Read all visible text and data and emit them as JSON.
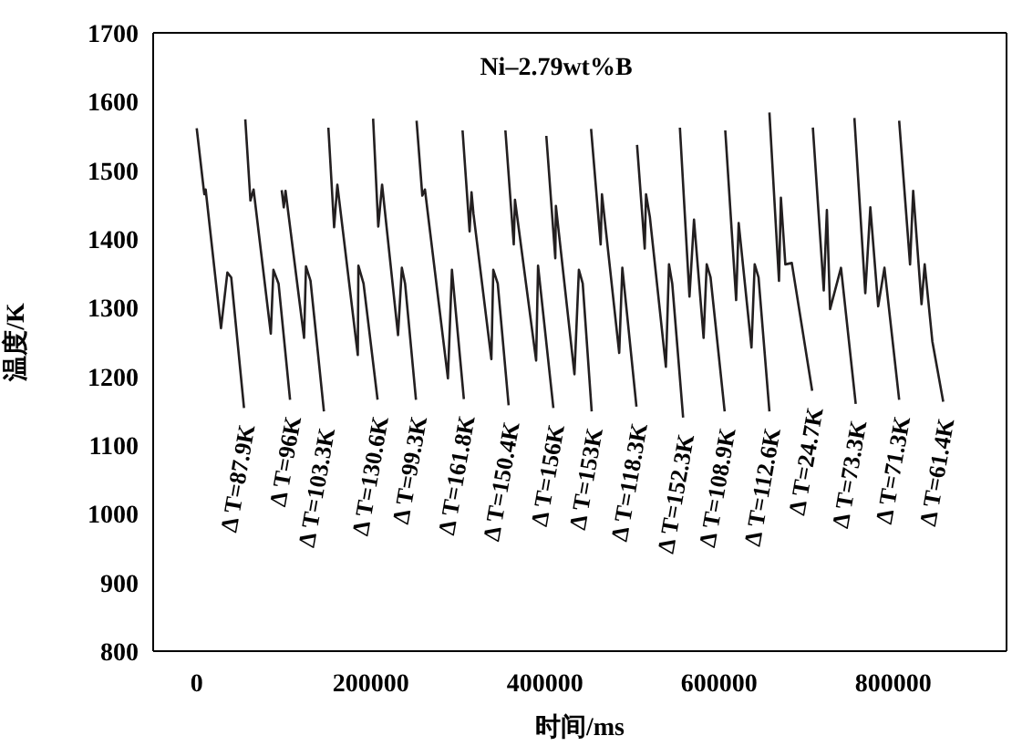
{
  "chart_data": {
    "type": "line",
    "title": "Ni–2.79wt%B",
    "xlabel": "时间/ms",
    "ylabel": "温度/K",
    "xlim": [
      -50000,
      930000
    ],
    "xticks": [
      0,
      200000,
      400000,
      600000,
      800000
    ],
    "ylim": [
      800,
      1700
    ],
    "yticks": [
      800,
      900,
      1000,
      1100,
      1200,
      1300,
      1400,
      1500,
      1600,
      1700
    ],
    "grid": false,
    "marker": "none",
    "line_style": "solid",
    "series": [
      {
        "color": "#231f20",
        "x": [
          0,
          8074,
          8808,
          10276,
          27892,
          35232,
          39636,
          54316
        ],
        "values": [
          1561,
          1472,
          1465,
          1472,
          1270,
          1351,
          1344,
          1154
        ]
      },
      {
        "color": "#231f20",
        "x": [
          55800,
          61700,
          65300,
          85100,
          88100,
          94000,
          107200
        ],
        "values": [
          1574,
          1456,
          1472,
          1262,
          1355,
          1335,
          1166
        ]
      },
      {
        "color": "#231f20",
        "x": [
          97600,
          100000,
          102000,
          123300,
          125500,
          130700,
          146100
        ],
        "values": [
          1471,
          1446,
          1470,
          1256,
          1360,
          1339,
          1149
        ]
      },
      {
        "color": "#231f20",
        "x": [
          151200,
          157800,
          161500,
          163700,
          185000,
          185700,
          191600,
          207700
        ],
        "values": [
          1562,
          1417,
          1479,
          1456,
          1231,
          1361,
          1335,
          1166
        ]
      },
      {
        "color": "#231f20",
        "x": [
          202600,
          208500,
          212900,
          231200,
          235600,
          239300,
          251800
        ],
        "values": [
          1575,
          1418,
          1479,
          1260,
          1358,
          1335,
          1166
        ]
      },
      {
        "color": "#231f20",
        "x": [
          252500,
          259100,
          262100,
          288500,
          293100,
          306800
        ],
        "values": [
          1572,
          1463,
          1472,
          1197,
          1355,
          1167
        ]
      },
      {
        "color": "#231f20",
        "x": [
          305300,
          313400,
          315600,
          317800,
          338400,
          340600,
          345700,
          358200
        ],
        "values": [
          1558,
          1411,
          1468,
          1437,
          1225,
          1355,
          1335,
          1158
        ]
      },
      {
        "color": "#231f20",
        "x": [
          354500,
          364100,
          365500,
          389800,
          392000,
          409600
        ],
        "values": [
          1558,
          1392,
          1457,
          1223,
          1361,
          1154
        ]
      },
      {
        "color": "#231f20",
        "x": [
          401500,
          411800,
          412500,
          433800,
          438900,
          443300,
          453600
        ],
        "values": [
          1550,
          1372,
          1448,
          1203,
          1355,
          1335,
          1149
        ]
      },
      {
        "color": "#231f20",
        "x": [
          452900,
          463900,
          465400,
          485200,
          488800,
          505000
        ],
        "values": [
          1560,
          1392,
          1465,
          1234,
          1358,
          1156
        ]
      },
      {
        "color": "#231f20",
        "x": [
          505700,
          514500,
          516000,
          520400,
          538800,
          542400,
          546100,
          558600
        ],
        "values": [
          1537,
          1386,
          1465,
          1432,
          1214,
          1363,
          1335,
          1140
        ]
      },
      {
        "color": "#231f20",
        "x": [
          554900,
          565900,
          571100,
          582100,
          585700,
          590100,
          606300
        ],
        "values": [
          1562,
          1316,
          1428,
          1256,
          1363,
          1344,
          1149
        ]
      },
      {
        "color": "#231f20",
        "x": [
          607000,
          619500,
          622400,
          637100,
          640800,
          645200,
          657700
        ],
        "values": [
          1558,
          1311,
          1423,
          1242,
          1363,
          1344,
          1149
        ]
      },
      {
        "color": "#231f20",
        "x": [
          657700,
          668700,
          670900,
          676000,
          683400,
          706800
        ],
        "values": [
          1584,
          1339,
          1460,
          1363,
          1365,
          1179
        ]
      },
      {
        "color": "#231f20",
        "x": [
          707600,
          720100,
          723700,
          727400,
          739900,
          756800
        ],
        "values": [
          1562,
          1325,
          1442,
          1298,
          1358,
          1160
        ]
      },
      {
        "color": "#231f20",
        "x": [
          755300,
          767800,
          773600,
          782600,
          789800,
          806700
        ],
        "values": [
          1576,
          1321,
          1446,
          1302,
          1358,
          1166
        ]
      },
      {
        "color": "#231f20",
        "x": [
          806700,
          819200,
          822800,
          832400,
          836000,
          844800,
          857300
        ],
        "values": [
          1572,
          1363,
          1470,
          1305,
          1363,
          1251,
          1163
        ]
      }
    ],
    "annotations": [
      {
        "text": "Δ T=87.9K",
        "x": 54316,
        "y": 1154
      },
      {
        "text": "Δ T=96K",
        "x": 107200,
        "y": 1166
      },
      {
        "text": "Δ T=103.3K",
        "x": 146100,
        "y": 1149
      },
      {
        "text": "Δ T=130.6K",
        "x": 207700,
        "y": 1166
      },
      {
        "text": "Δ T=99.3K",
        "x": 251800,
        "y": 1166
      },
      {
        "text": "Δ T=161.8K",
        "x": 306800,
        "y": 1167
      },
      {
        "text": "Δ T=150.4K",
        "x": 358200,
        "y": 1158
      },
      {
        "text": "Δ T=156K",
        "x": 409600,
        "y": 1154
      },
      {
        "text": "Δ T=153K",
        "x": 453600,
        "y": 1149
      },
      {
        "text": "Δ T=118.3K",
        "x": 505000,
        "y": 1156
      },
      {
        "text": "Δ T=152.3K",
        "x": 558600,
        "y": 1140
      },
      {
        "text": "Δ T=108.9K",
        "x": 606300,
        "y": 1149
      },
      {
        "text": "Δ T=112.6K",
        "x": 657700,
        "y": 1149
      },
      {
        "text": "Δ T=24.7K",
        "x": 706800,
        "y": 1179
      },
      {
        "text": "Δ T=73.3K",
        "x": 756800,
        "y": 1160
      },
      {
        "text": "Δ T=71.3K",
        "x": 806700,
        "y": 1166
      },
      {
        "text": "Δ T=61.4K",
        "x": 857300,
        "y": 1163
      }
    ]
  }
}
